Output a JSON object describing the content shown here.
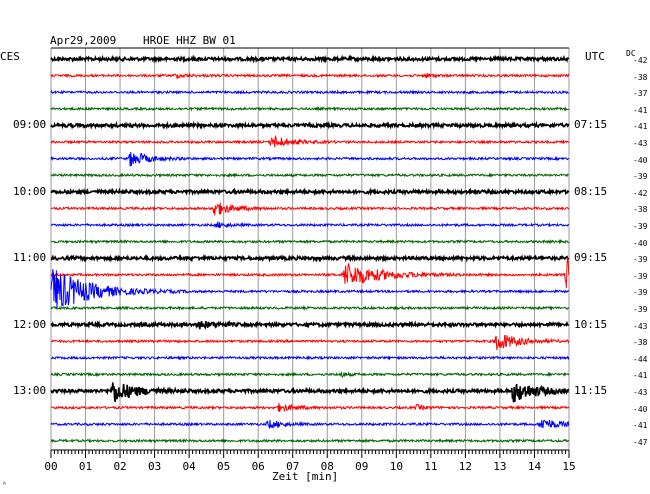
{
  "header": {
    "date": "Apr29,2009",
    "station": "HROE HHZ BW 01",
    "left_zone": "CES",
    "right_zone": "UTC",
    "dc_label": "DC"
  },
  "chart_data": {
    "type": "line",
    "title": "Apr29,2009   HROE HHZ BW 01",
    "xlabel": "Zeit [min]",
    "x_ticks": [
      "00",
      "01",
      "02",
      "03",
      "04",
      "05",
      "06",
      "07",
      "08",
      "09",
      "10",
      "11",
      "12",
      "13",
      "14",
      "15"
    ],
    "xlim": [
      0,
      15
    ],
    "grid": true,
    "trace_colors": [
      "#000000",
      "#ff0000",
      "#0000ff",
      "#006400"
    ],
    "left_time_labels": [
      {
        "row": 4,
        "text": "09:00"
      },
      {
        "row": 8,
        "text": "10:00"
      },
      {
        "row": 12,
        "text": "11:00"
      },
      {
        "row": 16,
        "text": "12:00"
      },
      {
        "row": 20,
        "text": "13:00"
      }
    ],
    "right_time_labels": [
      {
        "row": 4,
        "text": "07:15"
      },
      {
        "row": 8,
        "text": "08:15"
      },
      {
        "row": 12,
        "text": "09:15"
      },
      {
        "row": 16,
        "text": "10:15"
      },
      {
        "row": 20,
        "text": "11:15"
      }
    ],
    "dc_values": [
      "-42",
      "-38",
      "-37",
      "-41",
      "-41",
      "-43",
      "-40",
      "-39",
      "-42",
      "-38",
      "-39",
      "-40",
      "-39",
      "-39",
      "-39",
      "-39",
      "-43",
      "-38",
      "-44",
      "-41",
      "-43",
      "-40",
      "-41",
      "-47"
    ],
    "events": [
      {
        "row": 1,
        "minute": 3.6,
        "amp": 0.25,
        "dur": 0.6
      },
      {
        "row": 1,
        "minute": 10.8,
        "amp": 0.35,
        "dur": 0.3
      },
      {
        "row": 5,
        "minute": 6.4,
        "amp": 0.9,
        "dur": 0.8
      },
      {
        "row": 6,
        "minute": 2.3,
        "amp": 1.1,
        "dur": 0.8
      },
      {
        "row": 9,
        "minute": 4.7,
        "amp": 1.1,
        "dur": 0.8
      },
      {
        "row": 10,
        "minute": 4.8,
        "amp": 0.4,
        "dur": 0.5
      },
      {
        "row": 13,
        "minute": 8.5,
        "amp": 1.8,
        "dur": 1.6
      },
      {
        "row": 13,
        "minute": 14.95,
        "amp": 2.6,
        "dur": 0.25
      },
      {
        "row": 14,
        "minute": 0.05,
        "amp": 3.4,
        "dur": 1.6
      },
      {
        "row": 16,
        "minute": 4.3,
        "amp": 0.5,
        "dur": 0.6
      },
      {
        "row": 17,
        "minute": 12.9,
        "amp": 1.4,
        "dur": 0.9
      },
      {
        "row": 19,
        "minute": 8.4,
        "amp": 0.3,
        "dur": 0.3
      },
      {
        "row": 20,
        "minute": 1.8,
        "amp": 1.6,
        "dur": 0.9
      },
      {
        "row": 20,
        "minute": 13.4,
        "amp": 1.5,
        "dur": 1.0
      },
      {
        "row": 21,
        "minute": 6.6,
        "amp": 0.5,
        "dur": 0.8
      },
      {
        "row": 21,
        "minute": 10.6,
        "amp": 0.35,
        "dur": 0.3
      },
      {
        "row": 22,
        "minute": 6.3,
        "amp": 0.6,
        "dur": 0.6
      },
      {
        "row": 22,
        "minute": 14.2,
        "amp": 0.9,
        "dur": 0.8
      }
    ]
  }
}
